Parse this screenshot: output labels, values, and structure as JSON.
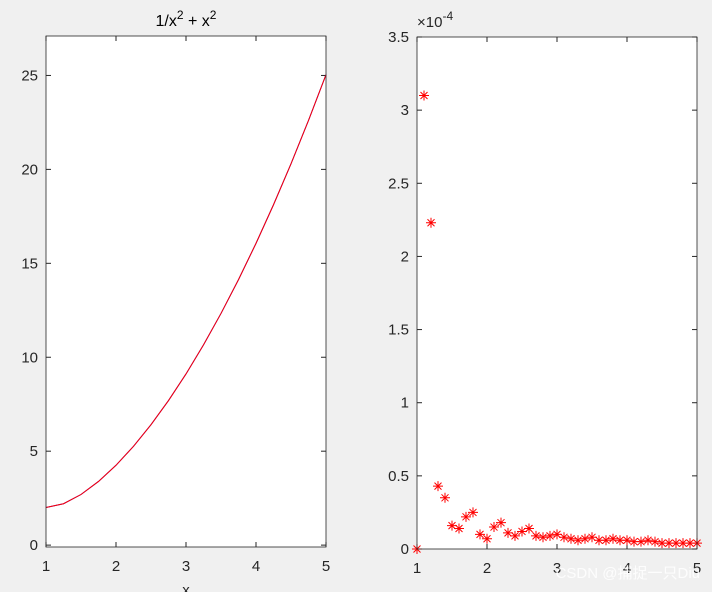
{
  "chart_data": [
    {
      "type": "line",
      "title_parts": [
        "1/x",
        "2",
        " + x",
        "2"
      ],
      "xlabel": "x",
      "x": [
        1,
        1.25,
        1.5,
        1.75,
        2,
        2.25,
        2.5,
        2.75,
        3,
        3.25,
        3.5,
        3.75,
        4,
        4.25,
        4.5,
        4.75,
        5
      ],
      "series": [
        {
          "color": "#0000ff",
          "values": [
            2,
            2.2025,
            2.694,
            3.389,
            4.25,
            5.26,
            6.41,
            7.695,
            9.111,
            10.657,
            12.332,
            14.134,
            16.0625,
            18.118,
            20.299,
            22.607,
            25.04
          ]
        },
        {
          "color": "#ff0000",
          "values": [
            2,
            2.2025,
            2.694,
            3.389,
            4.25,
            5.26,
            6.41,
            7.695,
            9.111,
            10.657,
            12.332,
            14.134,
            16.0625,
            18.118,
            20.299,
            22.607,
            25.04
          ]
        }
      ],
      "xlim": [
        1,
        5
      ],
      "ylim": [
        -0.1,
        27.1
      ],
      "xticks": [
        1,
        2,
        3,
        4,
        5
      ],
      "yticks": [
        0,
        5,
        10,
        15,
        20,
        25
      ],
      "box": true
    },
    {
      "type": "scatter",
      "marker": "*",
      "color": "#ff0000",
      "x": [
        1,
        1.1,
        1.2,
        1.3,
        1.4,
        1.5,
        1.6,
        1.7,
        1.8,
        1.9,
        2,
        2.1,
        2.2,
        2.3,
        2.4,
        2.5,
        2.6,
        2.7,
        2.8,
        2.9,
        3,
        3.1,
        3.2,
        3.3,
        3.4,
        3.5,
        3.6,
        3.7,
        3.8,
        3.9,
        4,
        4.1,
        4.2,
        4.3,
        4.4,
        4.5,
        4.6,
        4.7,
        4.8,
        4.9,
        5
      ],
      "y": [
        0,
        3.1,
        2.23,
        0.43,
        0.35,
        0.16,
        0.14,
        0.22,
        0.25,
        0.1,
        0.07,
        0.15,
        0.18,
        0.11,
        0.09,
        0.12,
        0.14,
        0.09,
        0.08,
        0.09,
        0.1,
        0.08,
        0.07,
        0.06,
        0.07,
        0.08,
        0.06,
        0.06,
        0.07,
        0.06,
        0.06,
        0.05,
        0.05,
        0.06,
        0.05,
        0.04,
        0.04,
        0.04,
        0.04,
        0.04,
        0.04
      ],
      "xlim": [
        1,
        5
      ],
      "ylim": [
        0,
        3.5
      ],
      "xticks": [
        1,
        2,
        3,
        4,
        5
      ],
      "yticks": [
        0,
        0.5,
        1,
        1.5,
        2,
        2.5,
        3,
        3.5
      ],
      "exponent_label": {
        "base": "×10",
        "power": "-4"
      },
      "box": true
    }
  ],
  "watermark": "CSDN @捕捉一只Diu"
}
